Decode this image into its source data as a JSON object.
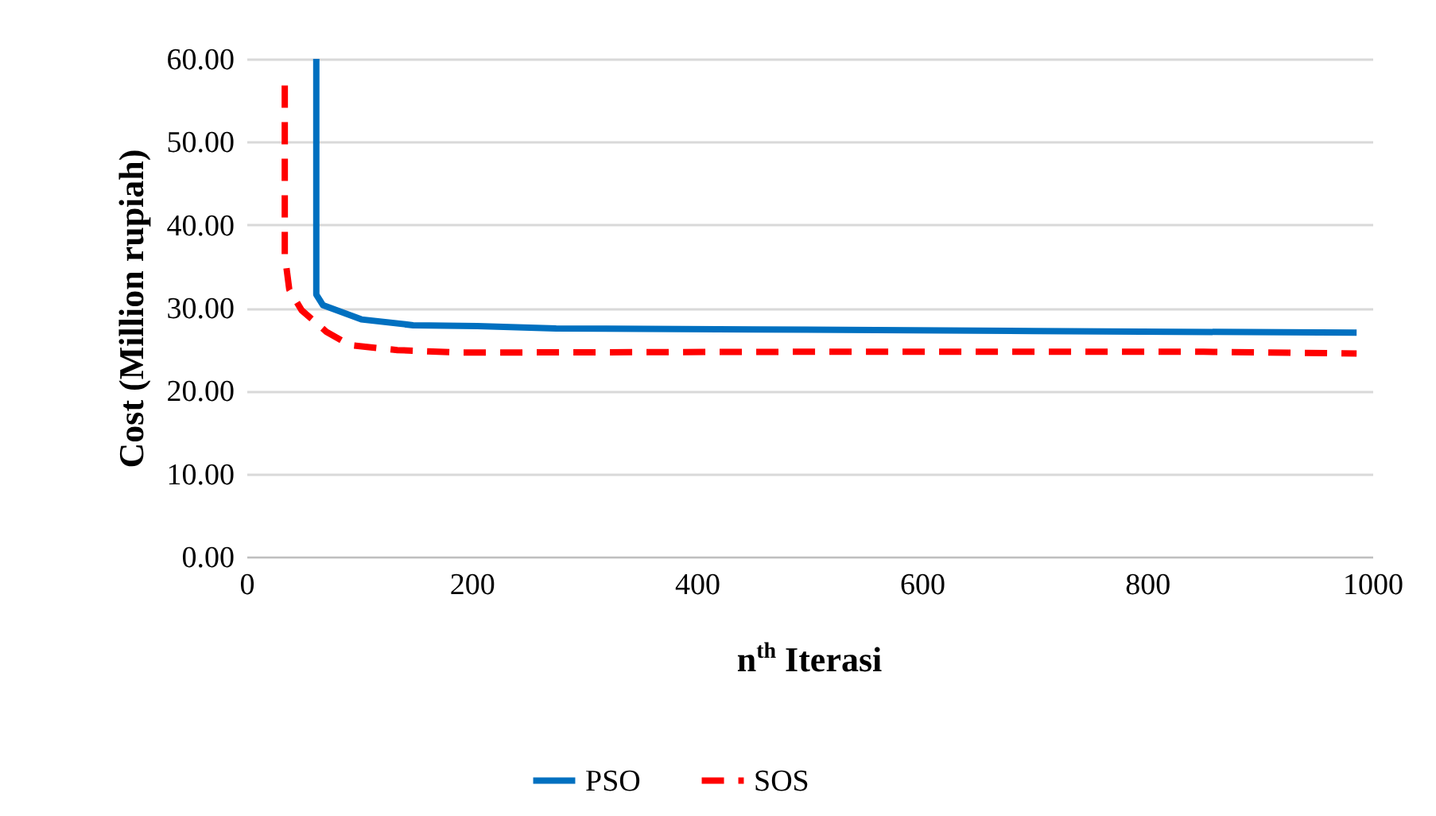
{
  "chart_data": {
    "type": "line",
    "xlabel": "n$^{th}$ Iterasi",
    "ylabel": "Cost (Million rupiah)",
    "xlim": [
      0,
      1000
    ],
    "xticks": [
      0,
      200,
      400,
      600,
      800,
      1000
    ],
    "ylim": [
      0,
      60
    ],
    "yticks": [
      {
        "value": 0,
        "label": "0.00"
      },
      {
        "value": 10,
        "label": "10.00"
      },
      {
        "value": 20,
        "label": "20.00"
      },
      {
        "value": 30,
        "label": "30.00"
      },
      {
        "value": 40,
        "label": "40.00"
      },
      {
        "value": 50,
        "label": "50.00"
      },
      {
        "value": 60,
        "label": "60.00"
      }
    ],
    "grid": "y",
    "legend": "bottom",
    "marker": "none",
    "series": [
      {
        "name": "PSO",
        "color": "#0070c0",
        "line_style": "solid",
        "x": [
          62,
          62,
          68,
          102,
          148,
          205,
          275,
          452,
          699,
          986
        ],
        "values": [
          60,
          31.6,
          30.3,
          28.6,
          27.9,
          27.8,
          27.5,
          27.4,
          27.2,
          27.0
        ]
      },
      {
        "name": "SOS",
        "color": "#ff0000",
        "line_style": "dashed",
        "x": [
          34,
          34,
          38,
          49,
          71,
          92,
          134,
          191,
          500,
          850,
          986
        ],
        "values": [
          56.8,
          36.4,
          32.2,
          29.7,
          27.1,
          25.5,
          24.9,
          24.6,
          24.7,
          24.7,
          24.5
        ]
      }
    ]
  }
}
